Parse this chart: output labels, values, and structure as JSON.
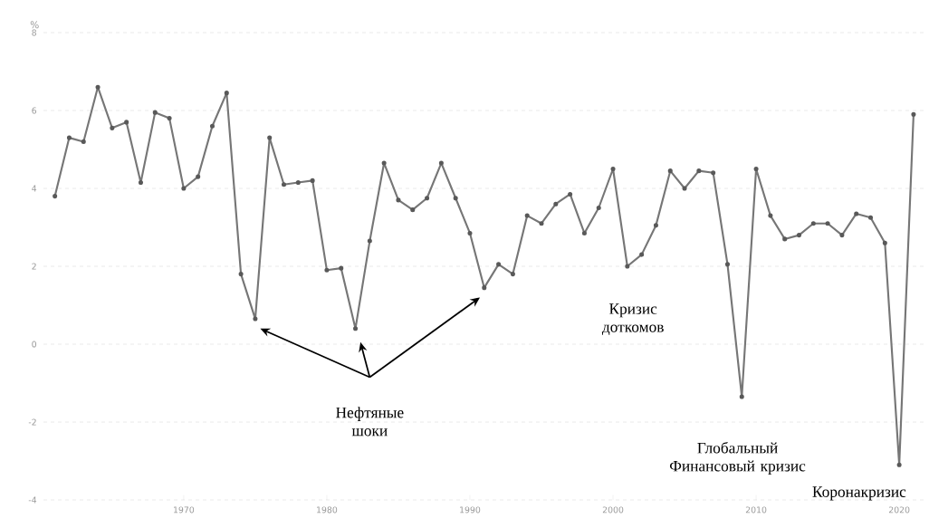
{
  "chart_data": {
    "type": "line",
    "ylabel": "%",
    "x": [
      1961,
      1962,
      1963,
      1964,
      1965,
      1966,
      1967,
      1968,
      1969,
      1970,
      1971,
      1972,
      1973,
      1974,
      1975,
      1976,
      1977,
      1978,
      1979,
      1980,
      1981,
      1982,
      1983,
      1984,
      1985,
      1986,
      1987,
      1988,
      1989,
      1990,
      1991,
      1992,
      1993,
      1994,
      1995,
      1996,
      1997,
      1998,
      1999,
      2000,
      2001,
      2002,
      2003,
      2004,
      2005,
      2006,
      2007,
      2008,
      2009,
      2010,
      2011,
      2012,
      2013,
      2014,
      2015,
      2016,
      2017,
      2018,
      2019,
      2020,
      2021
    ],
    "series": [
      {
        "color": "#767676",
        "values": [
          3.8,
          5.3,
          5.2,
          6.6,
          5.55,
          5.7,
          4.15,
          5.95,
          5.8,
          4.0,
          4.3,
          5.6,
          6.45,
          1.8,
          0.65,
          5.3,
          4.1,
          4.15,
          4.2,
          1.9,
          1.95,
          0.4,
          2.65,
          4.65,
          3.7,
          3.45,
          3.75,
          4.65,
          3.75,
          2.85,
          1.45,
          2.05,
          1.8,
          3.3,
          3.1,
          3.6,
          3.85,
          2.85,
          3.5,
          4.5,
          2.0,
          2.3,
          3.05,
          4.45,
          4.0,
          4.45,
          4.4,
          2.05,
          -1.35,
          4.5,
          3.3,
          2.7,
          2.8,
          3.1,
          3.1,
          2.8,
          3.35,
          3.25,
          2.6,
          -3.1,
          5.9
        ]
      }
    ],
    "xlim": [
      1960.2,
      2021.7
    ],
    "ylim": [
      -4,
      8
    ],
    "xticks": [
      1970,
      1980,
      1990,
      2000,
      2010,
      2020
    ],
    "yticks": [
      -4,
      -2,
      0,
      2,
      4,
      6,
      8
    ],
    "grid": "y",
    "marker": "circle",
    "line_style": "solid",
    "annotations": [
      "Нефтяные шоки",
      {
        "text": "Кризис доткомов",
        "x": 2001,
        "y": 2.0
      },
      {
        "text": "Глобальный Финансовый кризис",
        "x": 2009,
        "y": -1.35
      },
      {
        "text": "Коронакризис",
        "x": 2020,
        "y": -3.1
      }
    ]
  }
}
